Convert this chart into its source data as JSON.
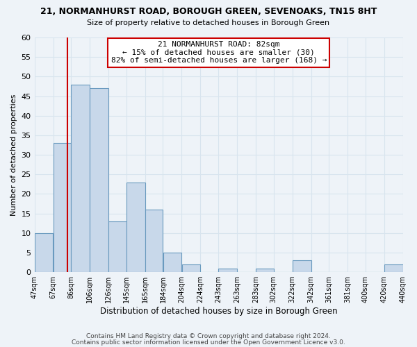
{
  "title": "21, NORMANHURST ROAD, BOROUGH GREEN, SEVENOAKS, TN15 8HT",
  "subtitle": "Size of property relative to detached houses in Borough Green",
  "xlabel": "Distribution of detached houses by size in Borough Green",
  "ylabel": "Number of detached properties",
  "footer_line1": "Contains HM Land Registry data © Crown copyright and database right 2024.",
  "footer_line2": "Contains public sector information licensed under the Open Government Licence v3.0.",
  "bin_edges": [
    47,
    67,
    86,
    106,
    126,
    145,
    165,
    184,
    204,
    224,
    243,
    263,
    283,
    302,
    322,
    342,
    361,
    381,
    400,
    420,
    440
  ],
  "bin_labels": [
    "47sqm",
    "67sqm",
    "86sqm",
    "106sqm",
    "126sqm",
    "145sqm",
    "165sqm",
    "184sqm",
    "204sqm",
    "224sqm",
    "243sqm",
    "263sqm",
    "283sqm",
    "302sqm",
    "322sqm",
    "342sqm",
    "361sqm",
    "381sqm",
    "400sqm",
    "420sqm",
    "440sqm"
  ],
  "counts": [
    10,
    33,
    48,
    47,
    13,
    23,
    16,
    5,
    2,
    0,
    1,
    0,
    1,
    0,
    3,
    0,
    0,
    0,
    0,
    2
  ],
  "bar_color": "#c8d8ea",
  "bar_edge_color": "#6a9abf",
  "vline_x": 82,
  "vline_color": "#cc0000",
  "ylim": [
    0,
    60
  ],
  "yticks": [
    0,
    5,
    10,
    15,
    20,
    25,
    30,
    35,
    40,
    45,
    50,
    55,
    60
  ],
  "annotation_title": "21 NORMANHURST ROAD: 82sqm",
  "annotation_line1": "← 15% of detached houses are smaller (30)",
  "annotation_line2": "82% of semi-detached houses are larger (168) →",
  "annotation_box_color": "#ffffff",
  "annotation_box_edge": "#cc0000",
  "grid_color": "#d8e4ee",
  "background_color": "#eef3f8"
}
